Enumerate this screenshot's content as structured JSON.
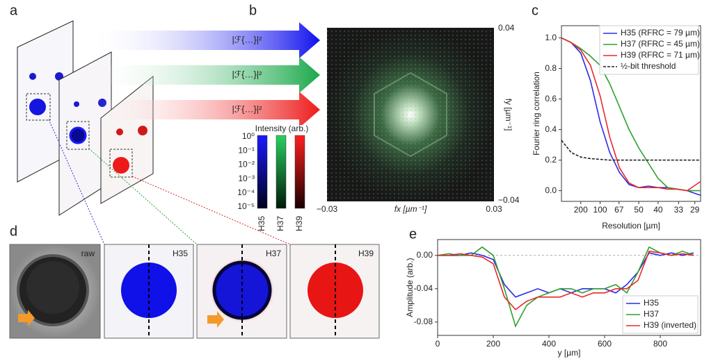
{
  "panel_letters": [
    "a",
    "b",
    "c",
    "d",
    "e"
  ],
  "panel_a": {
    "transform_labels": [
      "|ℱ{…}|²",
      "|ℱ{…}|²",
      "|ℱ{…}|²"
    ]
  },
  "panel_b": {
    "x_label": "fx [µm⁻¹]",
    "y_label": "fy [µm⁻¹]",
    "x_tick_labels": [
      "−0.03",
      "0.03"
    ],
    "y_tick_labels": [
      "0.04",
      "−0.04"
    ],
    "colorbar_title": "Intensity (arb.)",
    "colorbar_tick_labels": [
      "10⁰",
      "10⁻¹",
      "10⁻²",
      "10⁻³",
      "10⁻⁴",
      "10⁻⁵"
    ],
    "colorbar_names": [
      "H35",
      "H37",
      "H39"
    ]
  },
  "panel_d": {
    "tile_labels": [
      "raw",
      "H35",
      "H37",
      "H39"
    ]
  },
  "chart_data": [
    {
      "type": "line",
      "x_label": "Resolution [µm]",
      "y_label": "Fourier ring correlation",
      "x": [
        0,
        0.0025,
        0.005,
        0.0075,
        0.01,
        0.0125,
        0.015,
        0.0175,
        0.02,
        0.0225,
        0.025,
        0.0275,
        0.03,
        0.0325,
        0.036
      ],
      "series": [
        {
          "name": "H35 (RFRC = 79 µm)",
          "color": "#2a2ae8",
          "values": [
            1.0,
            0.97,
            0.9,
            0.72,
            0.45,
            0.25,
            0.12,
            0.04,
            0.02,
            0.03,
            0.02,
            0.02,
            0.01,
            0.0,
            -0.03
          ]
        },
        {
          "name": "H37 (RFRC = 45 µm)",
          "color": "#2ca02c",
          "values": [
            1.0,
            0.97,
            0.93,
            0.88,
            0.82,
            0.7,
            0.55,
            0.4,
            0.28,
            0.18,
            0.08,
            0.02,
            0.01,
            0.0,
            0.0
          ]
        },
        {
          "name": "H39 (RFRC = 71 µm)",
          "color": "#e8282a",
          "values": [
            1.0,
            0.97,
            0.92,
            0.82,
            0.62,
            0.35,
            0.15,
            0.05,
            0.02,
            0.02,
            0.02,
            0.01,
            0.01,
            0.0,
            0.06
          ]
        },
        {
          "name": "½-bit threshold",
          "color": "#222222",
          "style": "dashed",
          "values": [
            0.33,
            0.25,
            0.22,
            0.21,
            0.205,
            0.2,
            0.2,
            0.2,
            0.2,
            0.2,
            0.2,
            0.2,
            0.2,
            0.2,
            0.2
          ]
        }
      ],
      "xlim": [
        0,
        0.036
      ],
      "ylim": [
        -0.07,
        1.08
      ],
      "xticks": [
        {
          "value": 0.005,
          "label": "200"
        },
        {
          "value": 0.01,
          "label": "100"
        },
        {
          "value": 0.0149,
          "label": "67"
        },
        {
          "value": 0.02,
          "label": "50"
        },
        {
          "value": 0.025,
          "label": "40"
        },
        {
          "value": 0.0303,
          "label": "33"
        },
        {
          "value": 0.0345,
          "label": "29"
        }
      ],
      "yticks": [
        {
          "value": 0,
          "label": "0.0"
        },
        {
          "value": 0.2,
          "label": "0.2"
        },
        {
          "value": 0.4,
          "label": "0.4"
        },
        {
          "value": 0.6,
          "label": "0.6"
        },
        {
          "value": 0.8,
          "label": "0.8"
        },
        {
          "value": 1,
          "label": "1.0"
        }
      ],
      "legend": "upper right",
      "grid": false
    },
    {
      "type": "line",
      "x_label": "y [µm]",
      "y_label": "Amplitude (arb.)",
      "x": [
        0,
        40,
        80,
        120,
        160,
        200,
        240,
        280,
        320,
        360,
        400,
        440,
        480,
        520,
        560,
        600,
        640,
        680,
        720,
        760,
        800,
        840,
        880,
        920
      ],
      "series": [
        {
          "name": "H35",
          "color": "#2a2ae8",
          "values": [
            0,
            0,
            0,
            0.003,
            0,
            -0.005,
            -0.035,
            -0.05,
            -0.045,
            -0.04,
            -0.045,
            -0.04,
            -0.045,
            -0.04,
            -0.04,
            -0.04,
            -0.045,
            -0.035,
            -0.02,
            0.003,
            0.0,
            0.003,
            0.0,
            0.003
          ]
        },
        {
          "name": "H37",
          "color": "#2ca02c",
          "values": [
            0,
            0.002,
            0,
            0,
            0.01,
            0.0,
            -0.04,
            -0.085,
            -0.06,
            -0.05,
            -0.045,
            -0.04,
            -0.04,
            -0.045,
            -0.04,
            -0.04,
            -0.035,
            -0.045,
            -0.02,
            0.01,
            0.003,
            0,
            0.005,
            0
          ]
        },
        {
          "name": "H39 (inverted)",
          "color": "#e8282a",
          "values": [
            0,
            0,
            0.002,
            0,
            -0.002,
            -0.01,
            -0.05,
            -0.065,
            -0.055,
            -0.05,
            -0.05,
            -0.05,
            -0.045,
            -0.05,
            -0.045,
            -0.045,
            -0.04,
            -0.04,
            -0.03,
            0.005,
            0.003,
            0,
            0.002,
            0
          ]
        }
      ],
      "xlim": [
        0,
        945
      ],
      "ylim": [
        -0.096,
        0.019
      ],
      "xticks": [
        0,
        200,
        400,
        600,
        800
      ],
      "yticks": [
        {
          "value": 0,
          "label": "0.00"
        },
        {
          "value": -0.04,
          "label": "-0.04"
        },
        {
          "value": -0.08,
          "label": "-0.08"
        }
      ],
      "zero_line": true,
      "legend": "lower right",
      "grid": false
    }
  ]
}
